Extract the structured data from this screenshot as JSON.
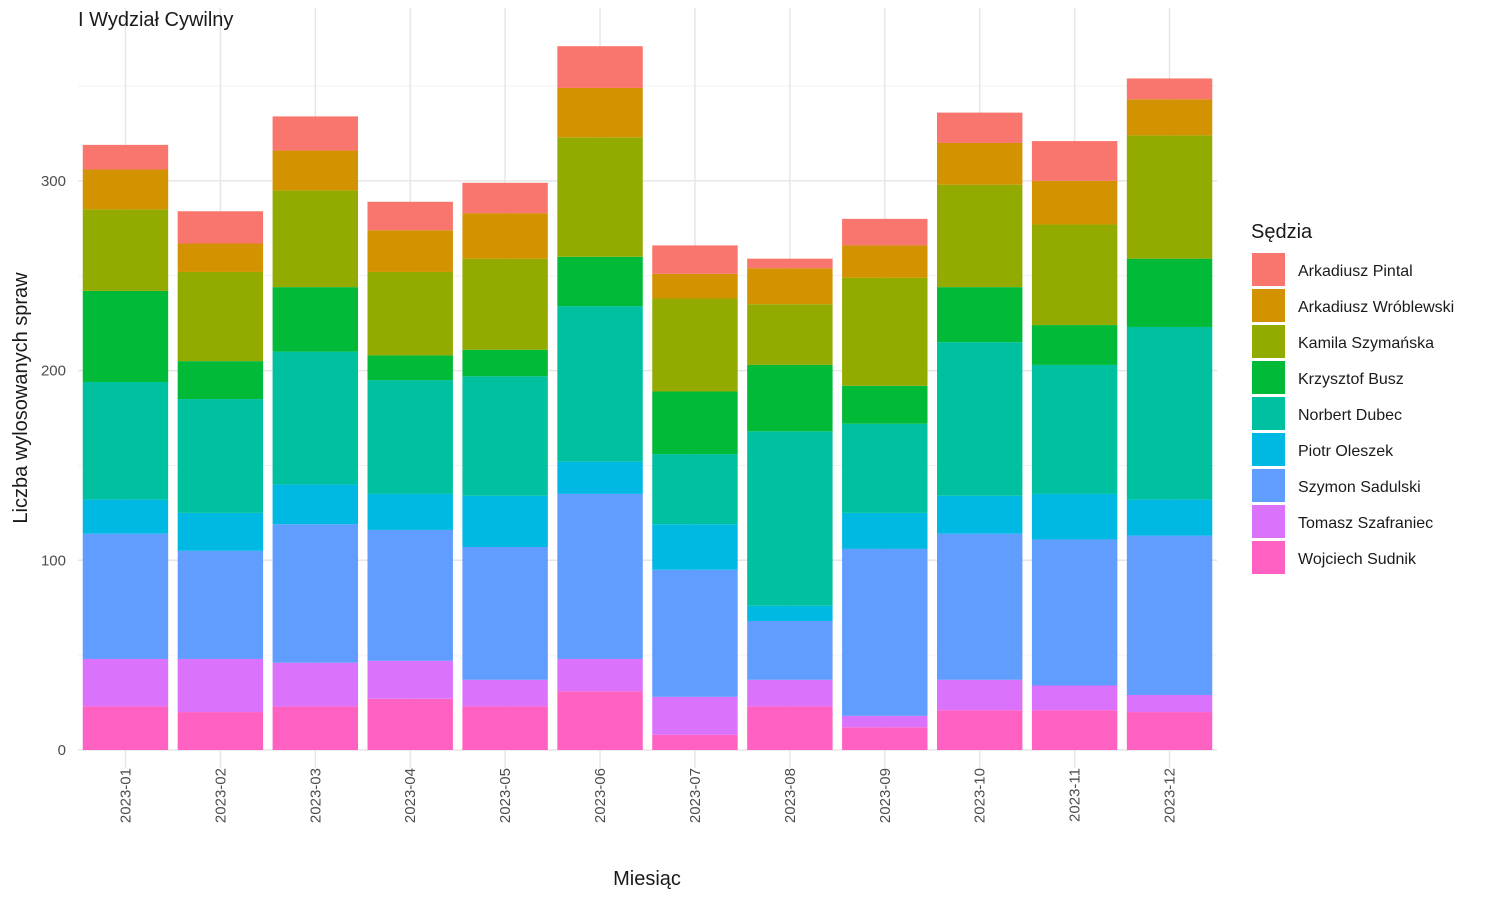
{
  "chart_data": {
    "type": "bar",
    "stacked": true,
    "title": "I Wydział Cywilny",
    "xlabel": "Miesiąc",
    "ylabel": "Liczba wylosowanych spraw",
    "ylim": [
      0,
      380
    ],
    "yticks": [
      0,
      100,
      200,
      300
    ],
    "grid": true,
    "legend_title": "Sędzia",
    "legend_position": "right",
    "categories": [
      "2023-01",
      "2023-02",
      "2023-03",
      "2023-04",
      "2023-05",
      "2023-06",
      "2023-07",
      "2023-08",
      "2023-09",
      "2023-10",
      "2023-11",
      "2023-12"
    ],
    "series": [
      {
        "name": "Wojciech Sudnik",
        "color": "#FF61C3",
        "values": [
          23,
          20,
          23,
          27,
          23,
          31,
          8,
          23,
          12,
          21,
          21,
          20
        ]
      },
      {
        "name": "Tomasz Szafraniec",
        "color": "#DB72FB",
        "values": [
          25,
          28,
          23,
          20,
          14,
          17,
          20,
          14,
          6,
          16,
          13,
          9
        ]
      },
      {
        "name": "Szymon Sadulski",
        "color": "#619CFF",
        "values": [
          66,
          57,
          73,
          69,
          70,
          87,
          67,
          31,
          88,
          77,
          77,
          84
        ]
      },
      {
        "name": "Piotr Oleszek",
        "color": "#00B9E3",
        "values": [
          18,
          20,
          21,
          19,
          27,
          17,
          24,
          8,
          19,
          20,
          24,
          19
        ]
      },
      {
        "name": "Norbert Dubec",
        "color": "#00C19F",
        "values": [
          62,
          60,
          70,
          60,
          63,
          82,
          37,
          92,
          47,
          81,
          68,
          91
        ]
      },
      {
        "name": "Krzysztof Busz",
        "color": "#00BA38",
        "values": [
          48,
          20,
          34,
          13,
          14,
          26,
          33,
          35,
          20,
          29,
          21,
          36
        ]
      },
      {
        "name": "Kamila Szymańska",
        "color": "#93AA00",
        "values": [
          43,
          47,
          51,
          44,
          48,
          63,
          49,
          32,
          57,
          54,
          53,
          65
        ]
      },
      {
        "name": "Arkadiusz Wróblewski",
        "color": "#D39200",
        "values": [
          21,
          15,
          21,
          22,
          24,
          26,
          13,
          19,
          17,
          22,
          23,
          19
        ]
      },
      {
        "name": "Arkadiusz Pintal",
        "color": "#F8766D",
        "values": [
          13,
          17,
          18,
          15,
          16,
          22,
          15,
          5,
          14,
          16,
          21,
          11
        ]
      }
    ],
    "legend_order": [
      "Arkadiusz Pintal",
      "Arkadiusz Wróblewski",
      "Kamila Szymańska",
      "Krzysztof Busz",
      "Norbert Dubec",
      "Piotr Oleszek",
      "Szymon Sadulski",
      "Tomasz Szafraniec",
      "Wojciech Sudnik"
    ]
  }
}
